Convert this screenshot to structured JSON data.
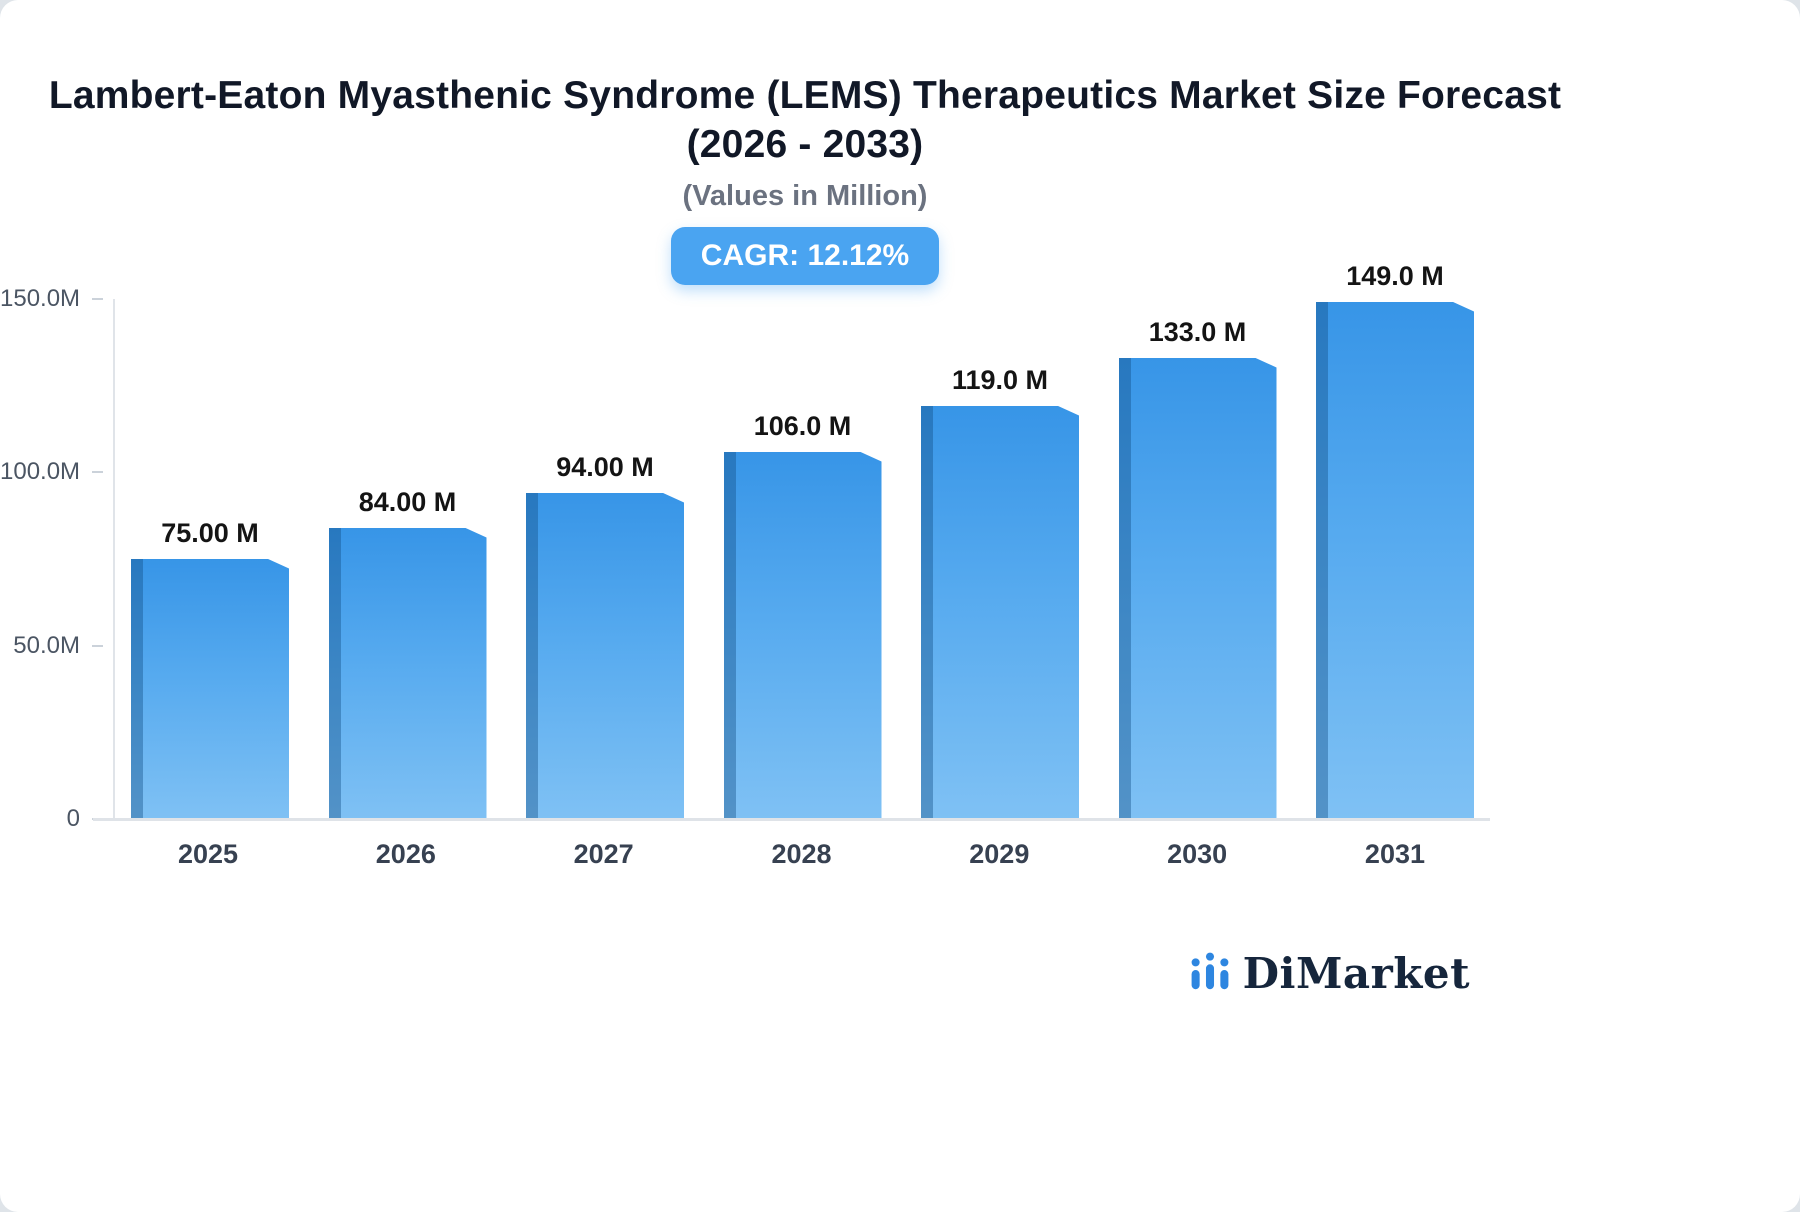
{
  "header": {
    "title_line1": "Lambert-Eaton Myasthenic Syndrome (LEMS) Therapeutics Market Size Forecast",
    "title_line2": "(2026 - 2033)",
    "subtitle": "(Values in Million)",
    "cagr_badge": "CAGR: 12.12%"
  },
  "chart_data": {
    "type": "bar",
    "title": "Lambert-Eaton Myasthenic Syndrome (LEMS) Therapeutics Market Size Forecast (2026 - 2033)",
    "subtitle": "(Values in Million)",
    "categories": [
      "2025",
      "2026",
      "2027",
      "2028",
      "2029",
      "2030",
      "2031"
    ],
    "values": [
      75,
      84,
      94,
      106,
      119,
      133,
      149
    ],
    "value_labels": [
      "75.00 M",
      "84.00 M",
      "94.00 M",
      "106.0 M",
      "119.0 M",
      "133.0 M",
      "149.0 M"
    ],
    "yticks": [
      {
        "value": 150,
        "label": "150.0M"
      },
      {
        "value": 100,
        "label": "100.0M"
      },
      {
        "value": 50,
        "label": "50.0M"
      },
      {
        "value": 0,
        "label": "0"
      }
    ],
    "ylim": [
      0,
      150
    ],
    "grid": false,
    "legend": "none",
    "bar_color_top": "#3795e7",
    "bar_color_bottom": "#7fc1f4",
    "bar_side_color": "#2c77bd",
    "badge_color": "#4aa4f1"
  },
  "footer": {
    "logo_text": "DiMarket",
    "logo_icon": "bar-chart-icon",
    "logo_color": "#2e86e0"
  }
}
